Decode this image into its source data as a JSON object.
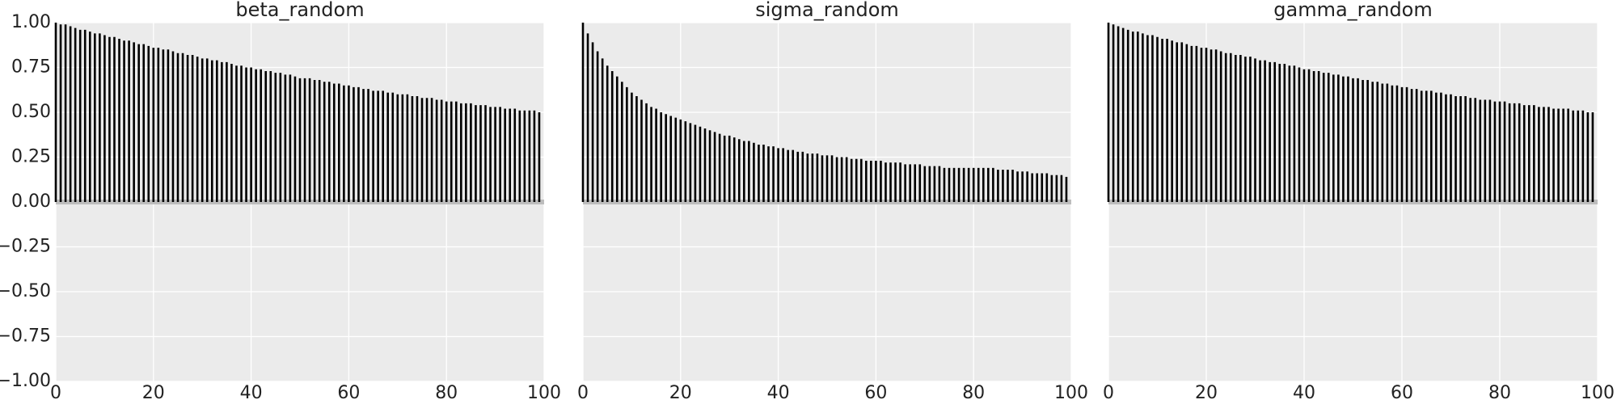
{
  "chart_data": [
    {
      "type": "stem",
      "title": "beta_random",
      "color": "#000000",
      "grid": true,
      "xlim": [
        0,
        100
      ],
      "xticks": [
        0,
        20,
        40,
        60,
        80,
        100
      ],
      "ylim": [
        -1,
        1
      ],
      "yticks": [
        {
          "value": -1,
          "label": "−1.00"
        },
        {
          "value": -0.75,
          "label": "−0.75"
        },
        {
          "value": -0.5,
          "label": "−0.50"
        },
        {
          "value": -0.25,
          "label": "−0.25"
        },
        {
          "value": 0,
          "label": "0.00"
        },
        {
          "value": 0.25,
          "label": "0.25"
        },
        {
          "value": 0.5,
          "label": "0.50"
        },
        {
          "value": 0.75,
          "label": "0.75"
        },
        {
          "value": 1,
          "label": "1.00"
        }
      ],
      "x": [
        0,
        1,
        2,
        3,
        4,
        5,
        6,
        7,
        8,
        9,
        10,
        11,
        12,
        13,
        14,
        15,
        16,
        17,
        18,
        19,
        20,
        21,
        22,
        23,
        24,
        25,
        26,
        27,
        28,
        29,
        30,
        31,
        32,
        33,
        34,
        35,
        36,
        37,
        38,
        39,
        40,
        41,
        42,
        43,
        44,
        45,
        46,
        47,
        48,
        49,
        50,
        51,
        52,
        53,
        54,
        55,
        56,
        57,
        58,
        59,
        60,
        61,
        62,
        63,
        64,
        65,
        66,
        67,
        68,
        69,
        70,
        71,
        72,
        73,
        74,
        75,
        76,
        77,
        78,
        79,
        80,
        81,
        82,
        83,
        84,
        85,
        86,
        87,
        88,
        89,
        90,
        91,
        92,
        93,
        94,
        95,
        96,
        97,
        98,
        99
      ],
      "values": [
        1.0,
        0.99,
        0.99,
        0.98,
        0.97,
        0.96,
        0.96,
        0.95,
        0.94,
        0.94,
        0.93,
        0.92,
        0.92,
        0.91,
        0.9,
        0.9,
        0.89,
        0.88,
        0.88,
        0.87,
        0.86,
        0.86,
        0.85,
        0.85,
        0.84,
        0.83,
        0.83,
        0.82,
        0.82,
        0.81,
        0.8,
        0.8,
        0.79,
        0.79,
        0.78,
        0.78,
        0.77,
        0.76,
        0.76,
        0.75,
        0.75,
        0.74,
        0.74,
        0.73,
        0.73,
        0.72,
        0.72,
        0.71,
        0.71,
        0.7,
        0.69,
        0.69,
        0.69,
        0.68,
        0.68,
        0.67,
        0.67,
        0.66,
        0.66,
        0.65,
        0.65,
        0.64,
        0.64,
        0.63,
        0.63,
        0.62,
        0.62,
        0.62,
        0.61,
        0.61,
        0.6,
        0.6,
        0.6,
        0.59,
        0.59,
        0.58,
        0.58,
        0.58,
        0.57,
        0.57,
        0.56,
        0.56,
        0.56,
        0.55,
        0.55,
        0.55,
        0.54,
        0.54,
        0.54,
        0.53,
        0.53,
        0.53,
        0.52,
        0.52,
        0.52,
        0.51,
        0.51,
        0.51,
        0.51,
        0.5
      ]
    },
    {
      "type": "stem",
      "title": "sigma_random",
      "color": "#000000",
      "grid": true,
      "xlim": [
        0,
        100
      ],
      "xticks": [
        0,
        20,
        40,
        60,
        80,
        100
      ],
      "ylim": [
        -1,
        1
      ],
      "x": [
        0,
        1,
        2,
        3,
        4,
        5,
        6,
        7,
        8,
        9,
        10,
        11,
        12,
        13,
        14,
        15,
        16,
        17,
        18,
        19,
        20,
        21,
        22,
        23,
        24,
        25,
        26,
        27,
        28,
        29,
        30,
        31,
        32,
        33,
        34,
        35,
        36,
        37,
        38,
        39,
        40,
        41,
        42,
        43,
        44,
        45,
        46,
        47,
        48,
        49,
        50,
        51,
        52,
        53,
        54,
        55,
        56,
        57,
        58,
        59,
        60,
        61,
        62,
        63,
        64,
        65,
        66,
        67,
        68,
        69,
        70,
        71,
        72,
        73,
        74,
        75,
        76,
        77,
        78,
        79,
        80,
        81,
        82,
        83,
        84,
        85,
        86,
        87,
        88,
        89,
        90,
        91,
        92,
        93,
        94,
        95,
        96,
        97,
        98,
        99
      ],
      "values": [
        1.0,
        0.94,
        0.89,
        0.84,
        0.8,
        0.76,
        0.73,
        0.7,
        0.67,
        0.64,
        0.61,
        0.59,
        0.57,
        0.55,
        0.53,
        0.52,
        0.5,
        0.49,
        0.48,
        0.47,
        0.46,
        0.45,
        0.44,
        0.43,
        0.42,
        0.41,
        0.4,
        0.39,
        0.38,
        0.37,
        0.37,
        0.36,
        0.35,
        0.34,
        0.34,
        0.33,
        0.32,
        0.32,
        0.31,
        0.31,
        0.3,
        0.3,
        0.29,
        0.29,
        0.28,
        0.28,
        0.27,
        0.27,
        0.27,
        0.26,
        0.26,
        0.26,
        0.25,
        0.25,
        0.25,
        0.24,
        0.24,
        0.24,
        0.23,
        0.23,
        0.23,
        0.23,
        0.22,
        0.22,
        0.22,
        0.22,
        0.21,
        0.21,
        0.21,
        0.21,
        0.2,
        0.2,
        0.2,
        0.2,
        0.19,
        0.19,
        0.19,
        0.19,
        0.19,
        0.19,
        0.19,
        0.19,
        0.19,
        0.19,
        0.19,
        0.18,
        0.18,
        0.18,
        0.18,
        0.17,
        0.17,
        0.17,
        0.16,
        0.16,
        0.16,
        0.16,
        0.15,
        0.15,
        0.15,
        0.14
      ]
    },
    {
      "type": "stem",
      "title": "gamma_random",
      "color": "#000000",
      "grid": true,
      "xlim": [
        0,
        100
      ],
      "xticks": [
        0,
        20,
        40,
        60,
        80,
        100
      ],
      "ylim": [
        -1,
        1
      ],
      "x": [
        0,
        1,
        2,
        3,
        4,
        5,
        6,
        7,
        8,
        9,
        10,
        11,
        12,
        13,
        14,
        15,
        16,
        17,
        18,
        19,
        20,
        21,
        22,
        23,
        24,
        25,
        26,
        27,
        28,
        29,
        30,
        31,
        32,
        33,
        34,
        35,
        36,
        37,
        38,
        39,
        40,
        41,
        42,
        43,
        44,
        45,
        46,
        47,
        48,
        49,
        50,
        51,
        52,
        53,
        54,
        55,
        56,
        57,
        58,
        59,
        60,
        61,
        62,
        63,
        64,
        65,
        66,
        67,
        68,
        69,
        70,
        71,
        72,
        73,
        74,
        75,
        76,
        77,
        78,
        79,
        80,
        81,
        82,
        83,
        84,
        85,
        86,
        87,
        88,
        89,
        90,
        91,
        92,
        93,
        94,
        95,
        96,
        97,
        98,
        99
      ],
      "values": [
        1.0,
        0.99,
        0.98,
        0.97,
        0.96,
        0.95,
        0.95,
        0.94,
        0.93,
        0.93,
        0.92,
        0.91,
        0.91,
        0.9,
        0.89,
        0.89,
        0.88,
        0.87,
        0.87,
        0.86,
        0.86,
        0.85,
        0.85,
        0.84,
        0.83,
        0.83,
        0.82,
        0.82,
        0.81,
        0.81,
        0.8,
        0.79,
        0.79,
        0.78,
        0.78,
        0.77,
        0.77,
        0.76,
        0.76,
        0.75,
        0.74,
        0.74,
        0.73,
        0.73,
        0.72,
        0.72,
        0.71,
        0.71,
        0.7,
        0.7,
        0.69,
        0.69,
        0.68,
        0.68,
        0.67,
        0.67,
        0.66,
        0.66,
        0.65,
        0.65,
        0.64,
        0.64,
        0.63,
        0.63,
        0.62,
        0.62,
        0.62,
        0.61,
        0.61,
        0.6,
        0.6,
        0.59,
        0.59,
        0.59,
        0.58,
        0.58,
        0.57,
        0.57,
        0.57,
        0.56,
        0.56,
        0.56,
        0.55,
        0.55,
        0.55,
        0.54,
        0.54,
        0.54,
        0.53,
        0.53,
        0.53,
        0.52,
        0.52,
        0.52,
        0.52,
        0.51,
        0.51,
        0.51,
        0.5,
        0.5
      ]
    }
  ]
}
